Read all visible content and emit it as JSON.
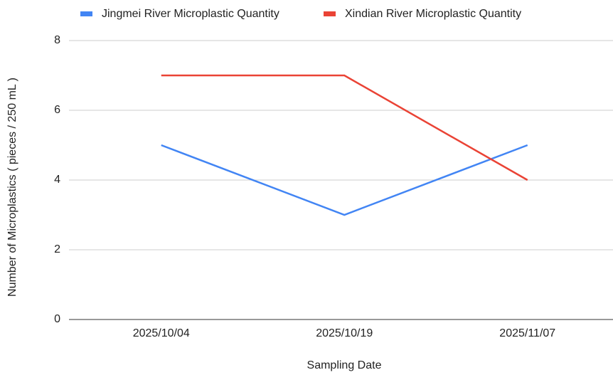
{
  "chart_data": {
    "type": "line",
    "x_label": "Sampling Date",
    "y_label": "Number of Microplastics ( pieces / 250 mL )",
    "categories": [
      "2025/10/04",
      "2025/10/19",
      "2025/11/07"
    ],
    "series": [
      {
        "name": "Jingmei River Microplastic Quantity",
        "color": "#4285f4",
        "values": [
          5,
          3,
          5
        ]
      },
      {
        "name": "Xindian River Microplastic Quantity",
        "color": "#ea4335",
        "values": [
          7,
          7,
          4
        ]
      }
    ],
    "ylim": [
      0,
      8
    ],
    "yticks": [
      0,
      2,
      4,
      6,
      8
    ],
    "grid": true,
    "legend": "top"
  }
}
